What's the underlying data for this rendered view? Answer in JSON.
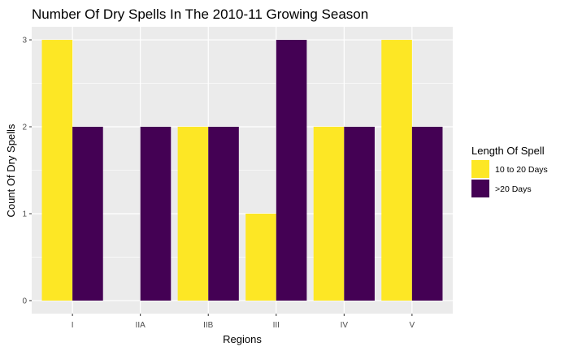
{
  "chart_data": {
    "type": "bar",
    "title": "Number Of Dry Spells In The 2010-11 Growing Season",
    "xlabel": "Regions",
    "ylabel": "Count Of Dry Spells",
    "categories": [
      "I",
      "IIA",
      "IIB",
      "III",
      "IV",
      "V"
    ],
    "series": [
      {
        "name": "10 to 20 Days",
        "color": "#FDE725",
        "values": [
          3,
          0,
          2,
          1,
          2,
          3
        ]
      },
      {
        "name": ">20 Days",
        "color": "#440154",
        "values": [
          2,
          2,
          2,
          3,
          2,
          2
        ]
      }
    ],
    "yticks": [
      0,
      1,
      2,
      3
    ],
    "ylim": [
      -0.15,
      3.15
    ],
    "grid": true,
    "panel_background": "#EBEBEB",
    "legend": {
      "title": "Length Of Spell",
      "position": "right"
    }
  }
}
